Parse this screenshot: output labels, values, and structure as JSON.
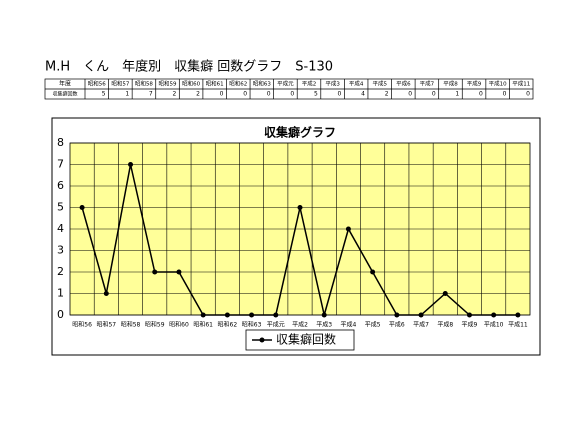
{
  "header": {
    "text": "M.H　くん　年度別　収集癖 回数グラフ　S-130"
  },
  "table": {
    "row_labels": [
      "年度",
      "収集癖回数"
    ]
  },
  "chart_data": {
    "type": "line",
    "title": "収集癖グラフ",
    "categories": [
      "昭和56",
      "昭和57",
      "昭和58",
      "昭和59",
      "昭和60",
      "昭和61",
      "昭和62",
      "昭和63",
      "平成元",
      "平成2",
      "平成3",
      "平成4",
      "平成5",
      "平成6",
      "平成7",
      "平成8",
      "平成9",
      "平成10",
      "平成11"
    ],
    "series": [
      {
        "name": "収集癖回数",
        "color": "#000000",
        "values": [
          5,
          1,
          7,
          2,
          2,
          0,
          0,
          0,
          0,
          5,
          0,
          4,
          2,
          0,
          0,
          1,
          0,
          0,
          0
        ]
      }
    ],
    "ylim": [
      0,
      8
    ],
    "yticks": [
      0,
      1,
      2,
      3,
      4,
      5,
      6,
      7,
      8
    ],
    "grid": true,
    "plot_color": "#ffff99",
    "legend": "bottom"
  }
}
